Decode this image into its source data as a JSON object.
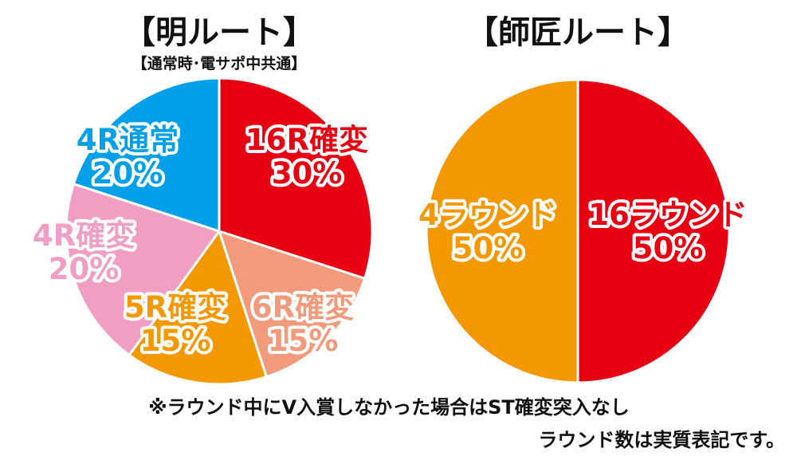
{
  "chart_data": [
    {
      "type": "pie",
      "title": "【明ルート】",
      "subtitle": "【通常時･電サポ中共通】",
      "slices": [
        {
          "line1": "16R確変",
          "line2": "30%",
          "value": 30,
          "color": "#e60012"
        },
        {
          "line1": "6R確変",
          "line2": "15%",
          "value": 15,
          "color": "#f19b7c"
        },
        {
          "line1": "5R確変",
          "line2": "15%",
          "value": 15,
          "color": "#f39800"
        },
        {
          "line1": "4R確変",
          "line2": "20%",
          "value": 20,
          "color": "#f09ec4"
        },
        {
          "line1": "4R通常",
          "line2": "20%",
          "value": 20,
          "color": "#00a0e9"
        }
      ]
    },
    {
      "type": "pie",
      "title": "【師匠ルート】",
      "slices": [
        {
          "line1": "16ラウンド",
          "line2": "50%",
          "value": 50,
          "color": "#e60012"
        },
        {
          "line1": "4ラウンド",
          "line2": "50%",
          "value": 50,
          "color": "#f39800"
        }
      ]
    }
  ],
  "notes": {
    "line1": "※ラウンド中にV入賞しなかった場合はST確変突入なし",
    "line2": "ラウンド数は実質表記です。"
  }
}
